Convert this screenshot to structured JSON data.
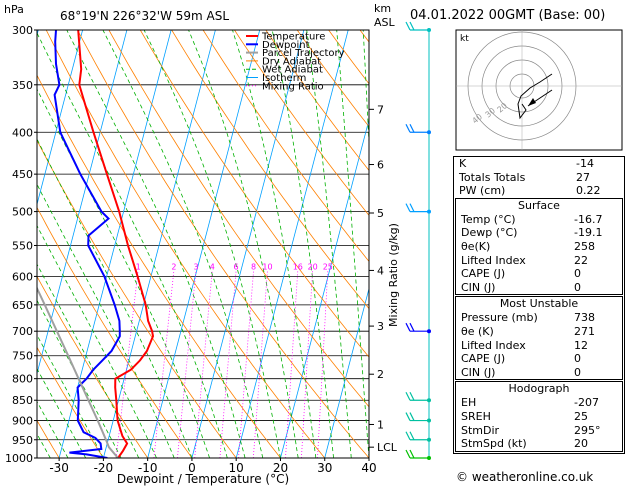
{
  "header": {
    "location": "68°19'N  226°32'W  59m  ASL",
    "time": "04.01.2022  00GMT  (Base: 00)"
  },
  "chart_data": {
    "type": "line",
    "chart_kind": "skew-T log-P diagram",
    "ylabel_left": "hPa",
    "ylabel_right": "Mixing Ratio (g/kg)",
    "km_label": "km",
    "asl_label": "ASL",
    "xlabel": "Dewpoint / Temperature (°C)",
    "xlim": [
      -35,
      40
    ],
    "ylim": [
      300,
      1000
    ],
    "y_scale": "log",
    "pressure_ticks": [
      300,
      350,
      400,
      450,
      500,
      550,
      600,
      650,
      700,
      750,
      800,
      850,
      900,
      950,
      1000
    ],
    "temperature_ticks": [
      -30,
      -20,
      -10,
      0,
      10,
      20,
      30,
      40
    ],
    "km_ticks": [
      {
        "label": "1",
        "p": 910
      },
      {
        "label": "2",
        "p": 790
      },
      {
        "label": "3",
        "p": 690
      },
      {
        "label": "4",
        "p": 590
      },
      {
        "label": "5",
        "p": 502
      },
      {
        "label": "6",
        "p": 438
      },
      {
        "label": "7",
        "p": 375
      },
      {
        "label": "LCL",
        "p": 970
      }
    ],
    "mixing_ratio_labels": [
      1,
      2,
      3,
      4,
      6,
      8,
      10,
      16,
      20,
      25
    ],
    "mixing_ratio_label_p": 590,
    "legend": [
      {
        "name": "Temperature",
        "color": "#ff0000"
      },
      {
        "name": "Dewpoint",
        "color": "#0000ff"
      },
      {
        "name": "Parcel Trajectory",
        "color": "#a0a0a0"
      },
      {
        "name": "Dry Adiabat",
        "color": "#ff8000"
      },
      {
        "name": "Wet Adiabat",
        "color": "#00b000"
      },
      {
        "name": "Isotherm",
        "color": "#00a0ff"
      },
      {
        "name": "Mixing Ratio",
        "color": "#ff00ff"
      }
    ],
    "series": [
      {
        "name": "Temperature",
        "color": "#ff0000",
        "points": [
          [
            1000,
            -16.7
          ],
          [
            980,
            -16.0
          ],
          [
            960,
            -15.5
          ],
          [
            940,
            -17.0
          ],
          [
            900,
            -19.0
          ],
          [
            850,
            -20.5
          ],
          [
            820,
            -21.5
          ],
          [
            800,
            -22.0
          ],
          [
            780,
            -19.0
          ],
          [
            760,
            -17.5
          ],
          [
            740,
            -16.5
          ],
          [
            710,
            -16.0
          ],
          [
            700,
            -16.5
          ],
          [
            680,
            -18.0
          ],
          [
            650,
            -19.5
          ],
          [
            600,
            -23.0
          ],
          [
            550,
            -27.0
          ],
          [
            500,
            -31.0
          ],
          [
            450,
            -36.0
          ],
          [
            400,
            -41.5
          ],
          [
            370,
            -45.0
          ],
          [
            350,
            -47.5
          ],
          [
            335,
            -48.0
          ],
          [
            300,
            -51.0
          ]
        ]
      },
      {
        "name": "Dewpoint",
        "color": "#0000ff",
        "points": [
          [
            1000,
            -19.1
          ],
          [
            990,
            -24.0
          ],
          [
            985,
            -28.0
          ],
          [
            975,
            -21.0
          ],
          [
            960,
            -21.5
          ],
          [
            945,
            -23.0
          ],
          [
            930,
            -26.0
          ],
          [
            900,
            -28.0
          ],
          [
            850,
            -29.0
          ],
          [
            820,
            -30.0
          ],
          [
            800,
            -28.5
          ],
          [
            780,
            -27.5
          ],
          [
            760,
            -26.0
          ],
          [
            740,
            -24.5
          ],
          [
            710,
            -23.5
          ],
          [
            700,
            -23.8
          ],
          [
            680,
            -24.5
          ],
          [
            650,
            -26.5
          ],
          [
            600,
            -30.5
          ],
          [
            550,
            -36.0
          ],
          [
            535,
            -36.5
          ],
          [
            510,
            -33.0
          ],
          [
            500,
            -35.0
          ],
          [
            450,
            -42.0
          ],
          [
            400,
            -49.0
          ],
          [
            360,
            -52.5
          ],
          [
            350,
            -52.0
          ],
          [
            330,
            -54.0
          ],
          [
            310,
            -55.5
          ],
          [
            300,
            -56.0
          ]
        ]
      },
      {
        "name": "Parcel Trajectory",
        "color": "#a0a0a0",
        "points": [
          [
            1000,
            -16.7
          ],
          [
            970,
            -19.4
          ],
          [
            950,
            -20.5
          ],
          [
            900,
            -23.5
          ],
          [
            850,
            -26.8
          ],
          [
            800,
            -30.3
          ],
          [
            750,
            -34.0
          ],
          [
            700,
            -38.0
          ],
          [
            650,
            -42.3
          ],
          [
            600,
            -47.0
          ],
          [
            550,
            -52.0
          ],
          [
            500,
            -57.5
          ]
        ]
      }
    ],
    "hodograph": {
      "label": "kt",
      "ring_labels": [
        "10",
        "20",
        "30",
        "40"
      ]
    }
  },
  "indices": {
    "top": [
      {
        "label": "K",
        "value": "-14"
      },
      {
        "label": "Totals Totals",
        "value": "27"
      },
      {
        "label": "PW (cm)",
        "value": "0.22"
      }
    ],
    "surface": {
      "title": "Surface",
      "rows": [
        {
          "label": "Temp (°C)",
          "value": "-16.7"
        },
        {
          "label": "Dewp (°C)",
          "value": "-19.1"
        },
        {
          "label": "θe(K)",
          "value": "258"
        },
        {
          "label": "Lifted Index",
          "value": "22"
        },
        {
          "label": "CAPE (J)",
          "value": "0"
        },
        {
          "label": "CIN (J)",
          "value": "0"
        }
      ]
    },
    "most_unstable": {
      "title": "Most Unstable",
      "rows": [
        {
          "label": "Pressure (mb)",
          "value": "738"
        },
        {
          "label": "θe (K)",
          "value": "271"
        },
        {
          "label": "Lifted Index",
          "value": "12"
        },
        {
          "label": "CAPE (J)",
          "value": "0"
        },
        {
          "label": "CIN (J)",
          "value": "0"
        }
      ]
    },
    "hodograph": {
      "title": "Hodograph",
      "rows": [
        {
          "label": "EH",
          "value": "-207"
        },
        {
          "label": "SREH",
          "value": "25"
        },
        {
          "label": "StmDir",
          "value": "295°"
        },
        {
          "label": "StmSpd (kt)",
          "value": "20"
        }
      ]
    }
  },
  "footer": "© weatheronline.co.uk"
}
